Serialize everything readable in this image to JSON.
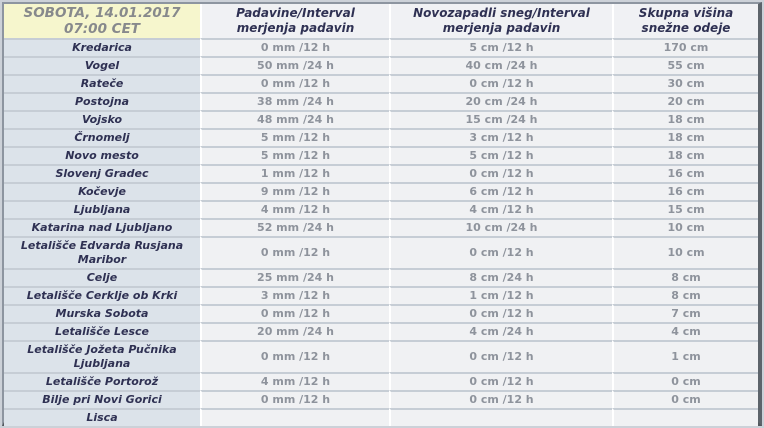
{
  "colors": {
    "page_background": "#ccd1d8",
    "date_cell_background": "#f6f6cd",
    "date_text": "#87898c",
    "column_header_background": "#f0f1f4",
    "header_and_station_text": "#2f3153",
    "station_cell_background": "#dce3ea",
    "value_cell_background": "#f0f1f3",
    "value_text": "#8e939c",
    "row_separator": "#c6cdd5",
    "column_separator": "#ffffff",
    "outer_border_light": "#8d95a0",
    "outer_border_dark": "#5d646b"
  },
  "header": {
    "date_line1": "SOBOTA, 14.01.2017",
    "date_line2": "07:00 CET",
    "col_precip": "Padavine/Interval merjenja padavin",
    "col_new_snow": "Novozapadli sneg/Interval merjenja padavin",
    "col_depth": "Skupna višina snežne odeje"
  },
  "table": {
    "rows": [
      {
        "station": "Kredarica",
        "precip": "0 mm /12 h",
        "new_snow": "5 cm /12 h",
        "depth": "170 cm"
      },
      {
        "station": "Vogel",
        "precip": "50 mm /24 h",
        "new_snow": "40 cm /24 h",
        "depth": "55 cm"
      },
      {
        "station": "Rateče",
        "precip": "0 mm /12 h",
        "new_snow": "0 cm /12 h",
        "depth": "30 cm"
      },
      {
        "station": "Postojna",
        "precip": "38 mm /24 h",
        "new_snow": "20 cm /24 h",
        "depth": "20 cm"
      },
      {
        "station": "Vojsko",
        "precip": "48 mm /24 h",
        "new_snow": "15 cm /24 h",
        "depth": "18 cm"
      },
      {
        "station": "Črnomelj",
        "precip": "5 mm /12 h",
        "new_snow": "3 cm /12 h",
        "depth": "18 cm"
      },
      {
        "station": "Novo mesto",
        "precip": "5 mm /12 h",
        "new_snow": "5 cm /12 h",
        "depth": "18 cm"
      },
      {
        "station": "Slovenj Gradec",
        "precip": "1 mm /12 h",
        "new_snow": "0 cm /12 h",
        "depth": "16 cm"
      },
      {
        "station": "Kočevje",
        "precip": "9 mm /12 h",
        "new_snow": "6 cm /12 h",
        "depth": "16 cm"
      },
      {
        "station": "Ljubljana",
        "precip": "4 mm /12 h",
        "new_snow": "4 cm /12 h",
        "depth": "15 cm"
      },
      {
        "station": "Katarina nad Ljubljano",
        "precip": "52 mm /24 h",
        "new_snow": "10 cm /24 h",
        "depth": "10 cm"
      },
      {
        "station": "Letališče Edvarda Rusjana Maribor",
        "precip": "0 mm /12 h",
        "new_snow": "0 cm /12 h",
        "depth": "10 cm"
      },
      {
        "station": "Celje",
        "precip": "25 mm /24 h",
        "new_snow": "8 cm /24 h",
        "depth": "8 cm"
      },
      {
        "station": "Letališče Cerklje ob Krki",
        "precip": "3 mm /12 h",
        "new_snow": "1 cm /12 h",
        "depth": "8 cm"
      },
      {
        "station": "Murska Sobota",
        "precip": "0 mm /12 h",
        "new_snow": "0 cm /12 h",
        "depth": "7 cm"
      },
      {
        "station": "Letališče Lesce",
        "precip": "20 mm /24 h",
        "new_snow": "4 cm /24 h",
        "depth": "4 cm"
      },
      {
        "station": "Letališče Jožeta Pučnika Ljubljana",
        "precip": "0 mm /12 h",
        "new_snow": "0 cm /12 h",
        "depth": "1 cm"
      },
      {
        "station": "Letališče Portorož",
        "precip": "4 mm /12 h",
        "new_snow": "0 cm /12 h",
        "depth": "0 cm"
      },
      {
        "station": "Bilje pri Novi Gorici",
        "precip": "0 mm /12 h",
        "new_snow": "0 cm /12 h",
        "depth": "0 cm"
      },
      {
        "station": "Lisca",
        "precip": "",
        "new_snow": "",
        "depth": ""
      }
    ]
  }
}
